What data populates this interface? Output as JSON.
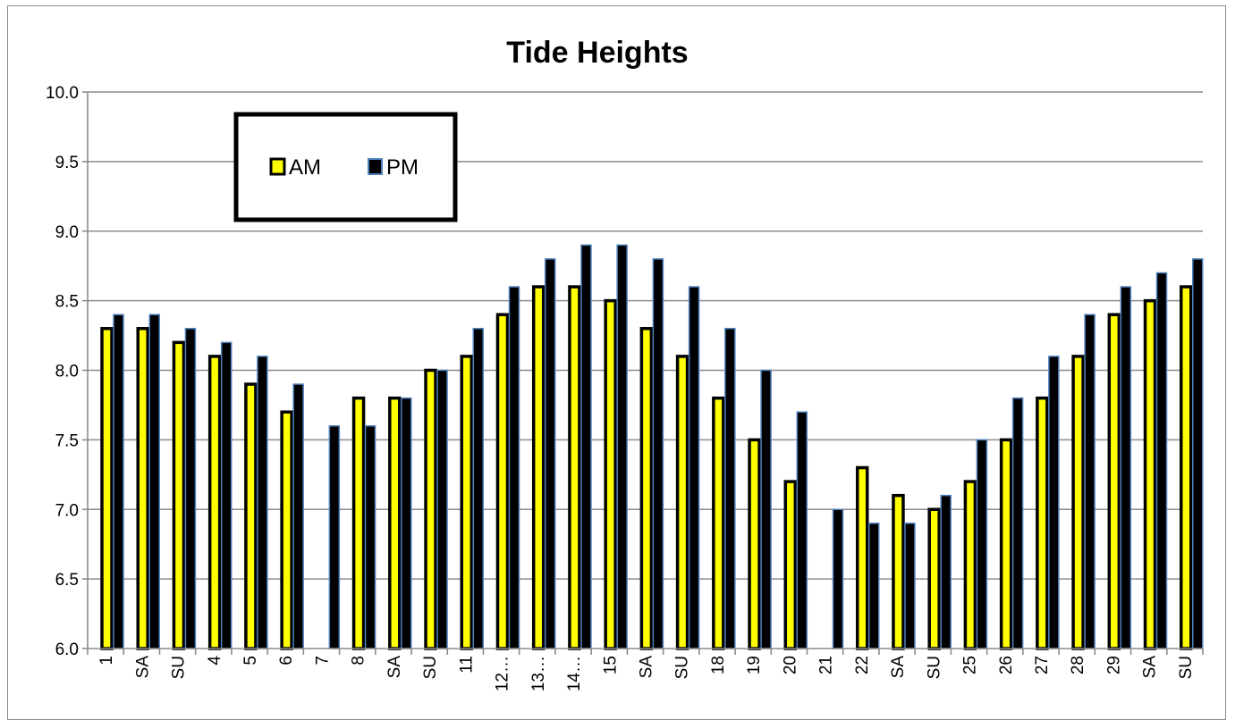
{
  "chart_data": {
    "type": "bar",
    "title": "Tide Heights",
    "xlabel": "",
    "ylabel": "",
    "ylim": [
      6.0,
      10.0
    ],
    "ytick_step": 0.5,
    "ytick_labels": [
      "6.0",
      "6.5",
      "7.0",
      "7.5",
      "8.0",
      "8.5",
      "9.0",
      "9.5",
      "10.0"
    ],
    "grid": true,
    "legend_position": "top-left",
    "categories": [
      "1",
      "SA",
      "SU",
      "4",
      "5",
      "6",
      "7",
      "8",
      "SA",
      "SU",
      "11",
      "12…",
      "13…",
      "14…",
      "15",
      "SA",
      "SU",
      "18",
      "19",
      "20",
      "21",
      "22",
      "SA",
      "SU",
      "25",
      "26",
      "27",
      "28",
      "29",
      "SA",
      "SU"
    ],
    "series": [
      {
        "name": "AM",
        "color": "#ffff00",
        "values": [
          8.3,
          8.3,
          8.2,
          8.1,
          7.9,
          7.7,
          null,
          7.8,
          7.8,
          8.0,
          8.1,
          8.4,
          8.6,
          8.6,
          8.5,
          8.3,
          8.1,
          7.8,
          7.5,
          7.2,
          null,
          7.3,
          7.1,
          7.0,
          7.2,
          7.5,
          7.8,
          8.1,
          8.4,
          8.5,
          8.6
        ]
      },
      {
        "name": "PM",
        "color": "#000000",
        "values": [
          8.4,
          8.4,
          8.3,
          8.2,
          8.1,
          7.9,
          7.6,
          7.6,
          7.8,
          8.0,
          8.3,
          8.6,
          8.8,
          8.9,
          8.9,
          8.8,
          8.6,
          8.3,
          8.0,
          7.7,
          7.0,
          6.9,
          6.9,
          7.1,
          7.5,
          7.8,
          8.1,
          8.4,
          8.6,
          8.7,
          8.8
        ]
      }
    ],
    "colors": {
      "am_fill": "#ffff00",
      "pm_fill": "#000000",
      "pm_outline": "#4f81bd",
      "gridline": "#8c8c8c"
    }
  }
}
